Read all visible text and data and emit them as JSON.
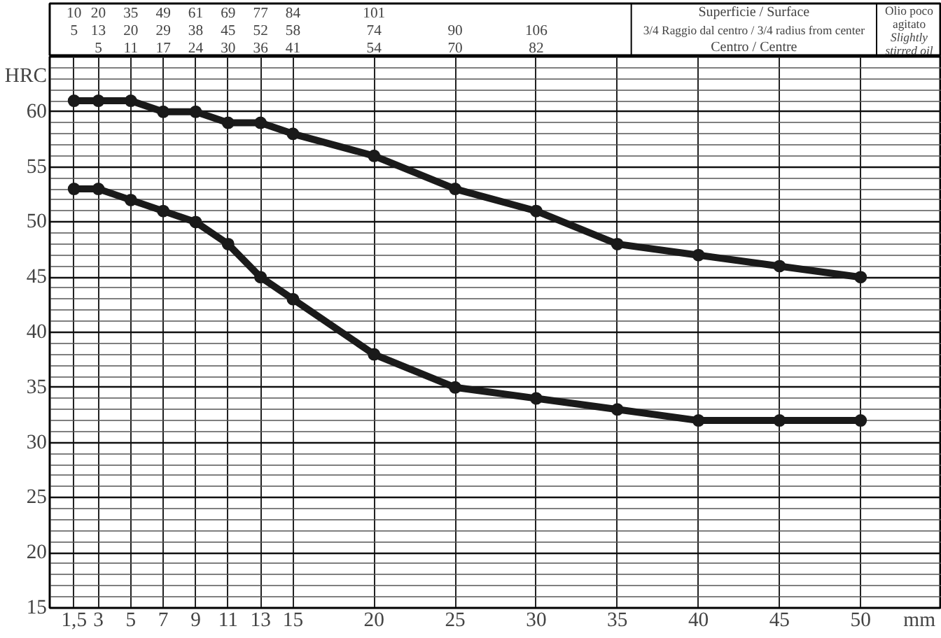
{
  "chart_data": {
    "type": "line",
    "subtitle": "Olio poco\nagitato\nSlightly\nstirred oil",
    "xlabel": "mm",
    "ylabel": "HRC",
    "x": [
      1.5,
      3,
      5,
      7,
      9,
      11,
      13,
      15,
      20,
      25,
      30,
      35,
      40,
      45,
      50
    ],
    "series": [
      {
        "color": "#1a1a1a",
        "values": [
          61,
          61,
          61,
          60,
          60,
          59,
          59,
          58,
          56,
          53,
          51,
          48,
          47,
          46,
          45
        ]
      },
      {
        "color": "#1a1a1a",
        "values": [
          53,
          53,
          52,
          51,
          50,
          48,
          45,
          43,
          38,
          35,
          34,
          33,
          32,
          32,
          32
        ]
      }
    ],
    "xlim": [
      0,
      55
    ],
    "ylim": [
      15,
      65
    ],
    "xticks": [
      {
        "value": 1.5,
        "label": "1,5"
      },
      3,
      5,
      7,
      9,
      11,
      13,
      15,
      20,
      25,
      30,
      35,
      40,
      45,
      50
    ],
    "yticks": [
      15,
      20,
      25,
      30,
      35,
      40,
      45,
      50,
      55,
      60
    ],
    "grid": true,
    "marker": "circle",
    "line_style": "solid",
    "annotations": [
      "Superficie / Surface",
      "3/4 Raggio dal centro / 3/4 radius from center",
      "Centro / Centre",
      "10\n5\n",
      "20\n13\n5",
      "35\n20\n11",
      "49\n29\n17",
      "61\n38\n24",
      "69\n45\n30",
      "77\n52\n36",
      "84\n58\n41",
      "101\n74\n54",
      "\n90\n70",
      "\n106\n82"
    ]
  }
}
